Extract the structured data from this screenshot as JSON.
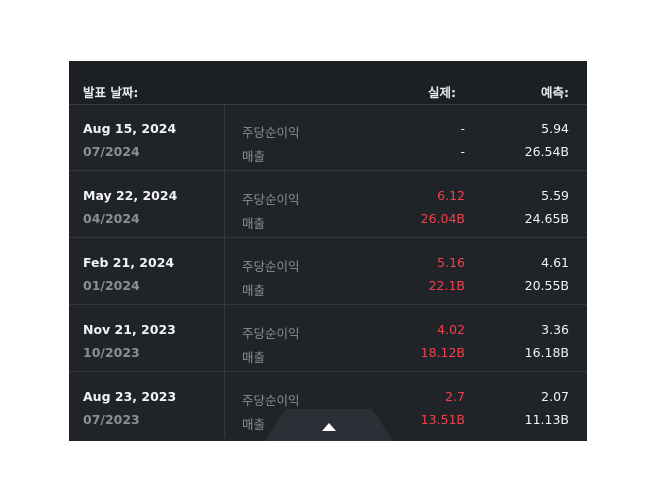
{
  "header": {
    "date_label": "발표 날짜:",
    "actual_label": "실제:",
    "forecast_label": "예측:"
  },
  "rows": [
    {
      "date": "Aug 15, 2024",
      "period": "07/2024",
      "eps_label": "주당순이익",
      "rev_label": "매출",
      "eps_actual": "-",
      "rev_actual": "-",
      "eps_forecast": "5.94",
      "rev_forecast": "26.54B"
    },
    {
      "date": "May 22, 2024",
      "period": "04/2024",
      "eps_label": "주당순이익",
      "rev_label": "매출",
      "eps_actual": "6.12",
      "rev_actual": "26.04B",
      "eps_forecast": "5.59",
      "rev_forecast": "24.65B"
    },
    {
      "date": "Feb 21, 2024",
      "period": "01/2024",
      "eps_label": "주당순이익",
      "rev_label": "매출",
      "eps_actual": "5.16",
      "rev_actual": "22.1B",
      "eps_forecast": "4.61",
      "rev_forecast": "20.55B"
    },
    {
      "date": "Nov 21, 2023",
      "period": "10/2023",
      "eps_label": "주당순이익",
      "rev_label": "매출",
      "eps_actual": "4.02",
      "rev_actual": "18.12B",
      "eps_forecast": "3.36",
      "rev_forecast": "16.18B"
    },
    {
      "date": "Aug 23, 2023",
      "period": "07/2023",
      "eps_label": "주당순이익",
      "rev_label": "매출",
      "eps_actual": "2.7",
      "rev_actual": "13.51B",
      "eps_forecast": "2.07",
      "rev_forecast": "11.13B"
    }
  ],
  "collapse_icon": "chevron-up-icon",
  "colors": {
    "panel_bg": "#202327",
    "beat": "#f0414b",
    "text": "#f2f3f5",
    "muted": "#8a8f96"
  }
}
